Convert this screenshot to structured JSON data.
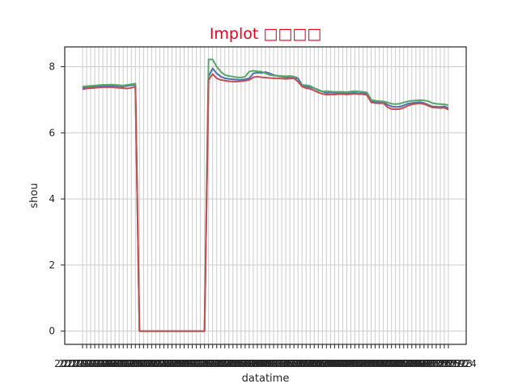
{
  "chart_data": {
    "type": "line",
    "title": "Implot □□□□",
    "xlabel": "datatime",
    "ylabel": "shou",
    "ylim": [
      -0.4,
      8.6
    ],
    "yticks": [
      0,
      2,
      4,
      6,
      8
    ],
    "grid": true,
    "categories": [
      "2022-01-04",
      "2022-01-05",
      "2022-01-06",
      "2022-01-07",
      "2022-01-10",
      "2022-01-11",
      "2022-01-12",
      "2022-01-13",
      "2022-01-14",
      "2022-01-17",
      "2022-01-18",
      "2022-01-19",
      "2022-01-20",
      "2022-01-21",
      "2022-01-24",
      "2022-01-25",
      "2022-01-26",
      "2022-01-27",
      "2022-01-28",
      "2022-02-07",
      "2022-02-08",
      "2022-02-09",
      "2022-02-10",
      "2022-02-11",
      "2022-02-14",
      "2022-02-15",
      "2022-02-16",
      "2022-02-17",
      "2022-02-18",
      "2022-02-21",
      "2022-02-22",
      "2022-02-23",
      "2022-02-24",
      "2022-02-25",
      "2022-02-28",
      "2022-03-01",
      "2022-03-02",
      "2022-03-03",
      "2022-03-04",
      "2022-03-07",
      "2022-03-08",
      "2022-03-09",
      "2022-03-10",
      "2022-03-11",
      "2022-03-14",
      "2022-03-15",
      "2022-03-16",
      "2022-03-17",
      "2022-03-18",
      "2022-03-21",
      "2022-03-22",
      "2022-03-23",
      "2022-03-24",
      "2022-03-25",
      "2022-03-28",
      "2022-03-29",
      "2022-03-30",
      "2022-03-31",
      "2022-04-01",
      "2022-04-06",
      "2022-04-07",
      "2022-04-08",
      "2022-04-11",
      "2022-04-12",
      "2022-04-13",
      "2022-04-14",
      "2022-04-15",
      "2022-04-18",
      "2022-04-19",
      "2022-04-20",
      "2022-04-21",
      "2022-04-22",
      "2022-04-25",
      "2022-04-26",
      "2022-04-27",
      "2022-04-28",
      "2022-04-29",
      "2022-05-05",
      "2022-05-06",
      "2022-05-09",
      "2022-05-10",
      "2022-05-11",
      "2022-05-12",
      "2022-05-13",
      "2022-05-16",
      "2022-05-17",
      "2022-05-18",
      "2022-05-19",
      "2022-05-20",
      "2022-05-23",
      "2022-05-24"
    ],
    "series": [
      {
        "color": "#4c72b0",
        "values": [
          7.36,
          7.38,
          7.39,
          7.4,
          7.41,
          7.42,
          7.42,
          7.43,
          7.42,
          7.41,
          7.4,
          7.42,
          7.44,
          7.45,
          0.0,
          0.0,
          0.0,
          0.0,
          0.0,
          0.0,
          0.0,
          0.0,
          0.0,
          0.0,
          0.0,
          0.0,
          0.0,
          0.0,
          0.0,
          0.0,
          0.0,
          7.7,
          7.95,
          7.8,
          7.7,
          7.65,
          7.63,
          7.62,
          7.61,
          7.6,
          7.62,
          7.65,
          7.8,
          7.82,
          7.81,
          7.84,
          7.8,
          7.75,
          7.72,
          7.7,
          7.68,
          7.69,
          7.7,
          7.65,
          7.45,
          7.4,
          7.38,
          7.35,
          7.3,
          7.25,
          7.2,
          7.22,
          7.21,
          7.2,
          7.2,
          7.19,
          7.2,
          7.21,
          7.19,
          7.2,
          7.18,
          6.95,
          6.93,
          6.92,
          6.94,
          6.85,
          6.8,
          6.78,
          6.79,
          6.83,
          6.88,
          6.9,
          6.92,
          6.93,
          6.9,
          6.85,
          6.8,
          6.79,
          6.78,
          6.8,
          6.75
        ]
      },
      {
        "color": "#55a868",
        "values": [
          7.4,
          7.41,
          7.42,
          7.43,
          7.44,
          7.45,
          7.45,
          7.46,
          7.45,
          7.44,
          7.43,
          7.45,
          7.47,
          7.49,
          0.0,
          0.0,
          0.0,
          0.0,
          0.0,
          0.0,
          0.0,
          0.0,
          0.0,
          0.0,
          0.0,
          0.0,
          0.0,
          0.0,
          0.0,
          0.0,
          0.0,
          8.22,
          8.22,
          8.0,
          7.85,
          7.75,
          7.72,
          7.7,
          7.68,
          7.67,
          7.7,
          7.85,
          7.88,
          7.86,
          7.85,
          7.8,
          7.75,
          7.73,
          7.73,
          7.72,
          7.71,
          7.72,
          7.7,
          7.55,
          7.45,
          7.44,
          7.42,
          7.35,
          7.28,
          7.25,
          7.26,
          7.25,
          7.24,
          7.24,
          7.24,
          7.23,
          7.25,
          7.26,
          7.25,
          7.24,
          7.22,
          7.0,
          6.97,
          6.96,
          6.95,
          6.92,
          6.88,
          6.87,
          6.88,
          6.92,
          6.95,
          6.97,
          6.98,
          6.99,
          6.98,
          6.96,
          6.9,
          6.88,
          6.87,
          6.86,
          6.84
        ]
      },
      {
        "color": "#c44e52",
        "values": [
          7.32,
          7.34,
          7.35,
          7.36,
          7.37,
          7.38,
          7.38,
          7.38,
          7.37,
          7.36,
          7.35,
          7.34,
          7.36,
          7.4,
          0.0,
          0.0,
          0.0,
          0.0,
          0.0,
          0.0,
          0.0,
          0.0,
          0.0,
          0.0,
          0.0,
          0.0,
          0.0,
          0.0,
          0.0,
          0.0,
          0.0,
          7.6,
          7.78,
          7.65,
          7.6,
          7.58,
          7.56,
          7.55,
          7.55,
          7.56,
          7.58,
          7.6,
          7.68,
          7.7,
          7.68,
          7.67,
          7.66,
          7.65,
          7.65,
          7.64,
          7.63,
          7.64,
          7.65,
          7.55,
          7.4,
          7.35,
          7.33,
          7.28,
          7.22,
          7.18,
          7.15,
          7.16,
          7.16,
          7.17,
          7.17,
          7.16,
          7.17,
          7.18,
          7.17,
          7.17,
          7.14,
          6.92,
          6.9,
          6.89,
          6.9,
          6.78,
          6.72,
          6.71,
          6.72,
          6.76,
          6.82,
          6.86,
          6.88,
          6.89,
          6.87,
          6.82,
          6.77,
          6.76,
          6.75,
          6.76,
          6.7
        ]
      }
    ]
  }
}
